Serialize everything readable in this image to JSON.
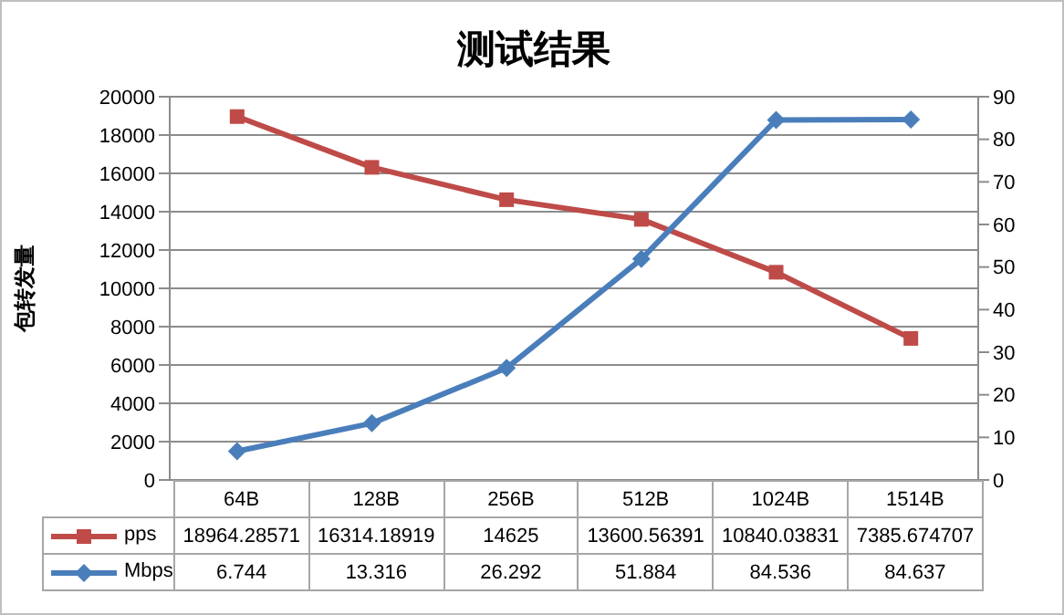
{
  "chart_data": {
    "type": "line",
    "title": "测试结果",
    "ylabel": "包转发量",
    "categories": [
      "64B",
      "128B",
      "256B",
      "512B",
      "1024B",
      "1514B"
    ],
    "series": [
      {
        "name": "pps",
        "color": "#be4b48",
        "marker": "square",
        "values": [
          18964.28571,
          16314.18919,
          14625,
          13600.56391,
          10840.03831,
          7385.674707
        ]
      },
      {
        "name": "Mbps",
        "color": "#4a7ebb",
        "marker": "diamond",
        "axis": "y2",
        "values": [
          6.744,
          13.316,
          26.292,
          51.884,
          84.536,
          84.637
        ]
      }
    ],
    "ylim": [
      0,
      20000
    ],
    "yticks": [
      0,
      2000,
      4000,
      6000,
      8000,
      10000,
      12000,
      14000,
      16000,
      18000,
      20000
    ],
    "y2lim": [
      0,
      90
    ],
    "y2ticks": [
      0,
      10,
      20,
      30,
      40,
      50,
      60,
      70,
      80,
      90
    ],
    "grid": "y",
    "legend": "bottom left",
    "data_labels": true
  }
}
